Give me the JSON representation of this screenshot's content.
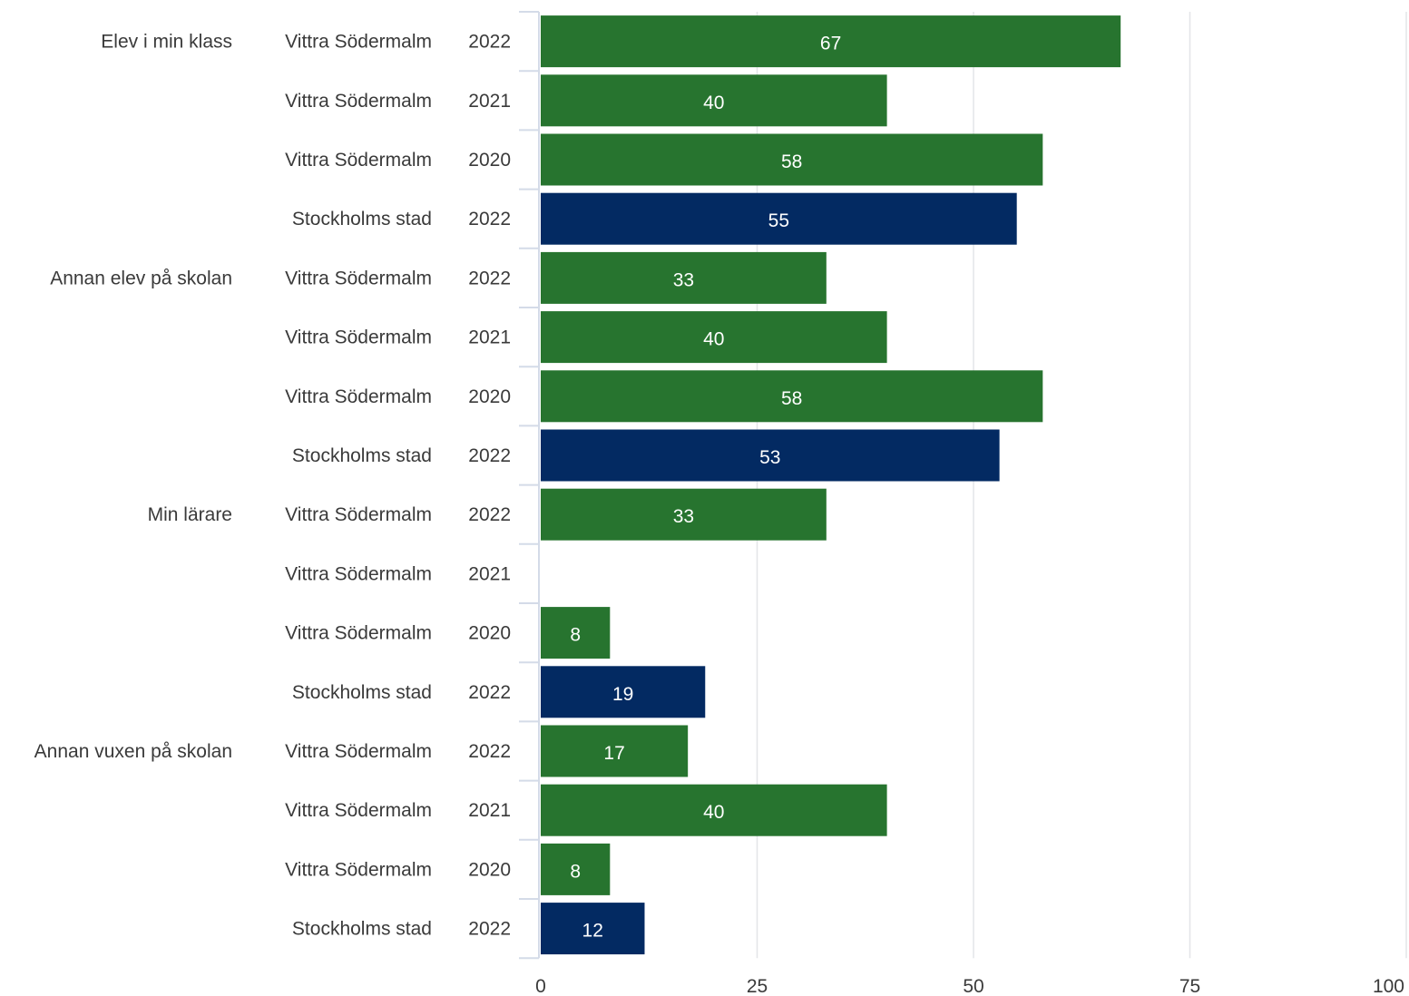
{
  "chart_data": {
    "type": "bar",
    "orientation": "horizontal",
    "xlim": [
      0,
      100
    ],
    "x_ticks": [
      0,
      25,
      50,
      75,
      100
    ],
    "grid": true,
    "colors": {
      "Vittra Södermalm": "#27742f",
      "Stockholms stad": "#032a62"
    },
    "rows": [
      {
        "group": "Elev i min klass",
        "unit": "Vittra Södermalm",
        "year": "2022",
        "value": 67
      },
      {
        "group": "",
        "unit": "Vittra Södermalm",
        "year": "2021",
        "value": 40
      },
      {
        "group": "",
        "unit": "Vittra Södermalm",
        "year": "2020",
        "value": 58
      },
      {
        "group": "",
        "unit": "Stockholms stad",
        "year": "2022",
        "value": 55
      },
      {
        "group": "Annan elev på skolan",
        "unit": "Vittra Södermalm",
        "year": "2022",
        "value": 33
      },
      {
        "group": "",
        "unit": "Vittra Södermalm",
        "year": "2021",
        "value": 40
      },
      {
        "group": "",
        "unit": "Vittra Södermalm",
        "year": "2020",
        "value": 58
      },
      {
        "group": "",
        "unit": "Stockholms stad",
        "year": "2022",
        "value": 53
      },
      {
        "group": "Min lärare",
        "unit": "Vittra Södermalm",
        "year": "2022",
        "value": 33
      },
      {
        "group": "",
        "unit": "Vittra Södermalm",
        "year": "2021",
        "value": null
      },
      {
        "group": "",
        "unit": "Vittra Södermalm",
        "year": "2020",
        "value": 8
      },
      {
        "group": "",
        "unit": "Stockholms stad",
        "year": "2022",
        "value": 19
      },
      {
        "group": "Annan vuxen på skolan",
        "unit": "Vittra Södermalm",
        "year": "2022",
        "value": 17
      },
      {
        "group": "",
        "unit": "Vittra Södermalm",
        "year": "2021",
        "value": 40
      },
      {
        "group": "",
        "unit": "Vittra Södermalm",
        "year": "2020",
        "value": 8
      },
      {
        "group": "",
        "unit": "Stockholms stad",
        "year": "2022",
        "value": 12
      }
    ]
  }
}
